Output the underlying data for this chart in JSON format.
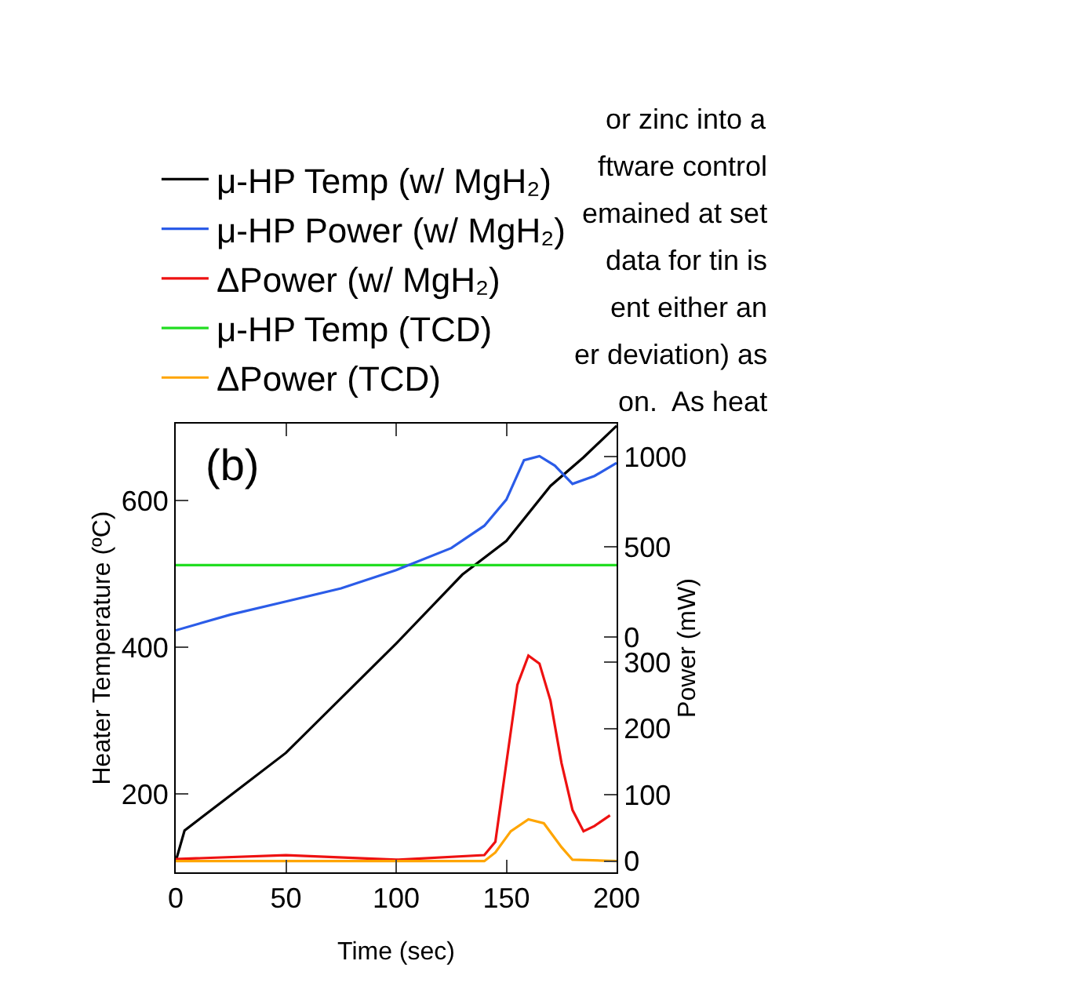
{
  "chart_data": {
    "type": "line",
    "xlabel": "Time (sec)",
    "ylabel": "Heater Temperature (ºC)",
    "y2label": "Power (mW)",
    "xlim": [
      0,
      200
    ],
    "xticks": [
      0,
      50,
      100,
      150,
      200
    ],
    "ylim": [
      93,
      705
    ],
    "yticks": [
      200,
      400,
      600
    ],
    "y2lim": [
      -1304,
      1183
    ],
    "y2ticks": [
      0,
      500,
      1000
    ],
    "y3lim": [
      -17,
      660
    ],
    "y3ticks": [
      0,
      100,
      200,
      300
    ],
    "grid": false,
    "legend": "top left",
    "marker": "none",
    "line_style": "solid",
    "annotations": [
      "(b)",
      "or zinc into a",
      "ftware control",
      "emained at set",
      "data for tin is",
      "ent either an",
      "er deviation) as",
      "on.  As heat"
    ],
    "series": [
      {
        "name": "μ-HP Temp (w/ MgH₂)",
        "color": "#000000",
        "x": [
          0,
          4,
          50,
          100,
          130,
          150,
          170,
          185,
          200
        ],
        "values": [
          108,
          150,
          256,
          405,
          499,
          545,
          620,
          659,
          702
        ]
      },
      {
        "name": "μ-HP Power (w/ MgH₂)",
        "color": "#2b5ce8",
        "axis": "y2",
        "x": [
          0,
          25,
          50,
          75,
          100,
          125,
          140,
          150,
          158,
          165,
          172,
          180,
          190,
          200
        ],
        "values": [
          37,
          125,
          197,
          270,
          371,
          493,
          617,
          762,
          980,
          1003,
          950,
          849,
          893,
          965
        ]
      },
      {
        "name": "ΔPower (w/ MgH₂)",
        "color": "#ee1111",
        "axis": "y3",
        "x": [
          0,
          50,
          100,
          140,
          145,
          150,
          155,
          160,
          165,
          170,
          175,
          180,
          185,
          190,
          197
        ],
        "values": [
          3,
          9,
          2,
          9,
          29,
          148,
          266,
          310,
          298,
          242,
          148,
          77,
          45,
          53,
          69
        ]
      },
      {
        "name": "μ-HP Temp (TCD)",
        "color": "#22dd22",
        "x": [
          0,
          200
        ],
        "values": [
          512,
          512
        ]
      },
      {
        "name": "ΔPower (TCD)",
        "color": "#ffa500",
        "axis": "y3",
        "x": [
          0,
          140,
          145,
          152,
          160,
          167,
          175,
          180,
          200
        ],
        "values": [
          0,
          0,
          13,
          45,
          63,
          57,
          21,
          2,
          0
        ]
      }
    ]
  }
}
